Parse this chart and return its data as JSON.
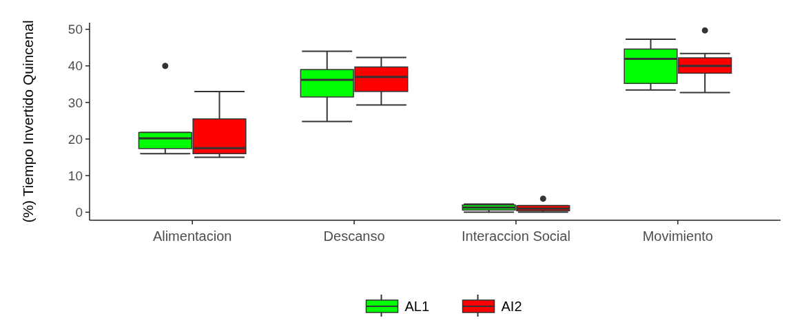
{
  "chart_data": {
    "type": "box",
    "ylabel": "(%) Tiempo Invertido Quincenal",
    "categories": [
      "Alimentacion",
      "Descanso",
      "Interaccion Social",
      "Movimiento"
    ],
    "ylim": [
      -2.2,
      51.8
    ],
    "yticks": [
      0,
      10,
      20,
      30,
      40,
      50
    ],
    "grid": false,
    "legend": "bottom",
    "series": [
      {
        "name": "AL1",
        "color": "#00ff00",
        "boxes": [
          {
            "low": 16,
            "q1": 17.4,
            "median": 20.2,
            "q3": 21.8,
            "high": 21.8,
            "outliers": [
              40
            ]
          },
          {
            "low": 24.8,
            "q1": 31.5,
            "median": 36.2,
            "q3": 39,
            "high": 44
          },
          {
            "low": 0,
            "q1": 0.6,
            "median": 1.3,
            "q3": 2,
            "high": 2.2
          },
          {
            "low": 33.4,
            "q1": 35.2,
            "median": 41.9,
            "q3": 44.6,
            "high": 47.3
          }
        ]
      },
      {
        "name": "AI2",
        "color": "#ff0000",
        "boxes": [
          {
            "low": 15,
            "q1": 16,
            "median": 17.5,
            "q3": 25.5,
            "high": 33
          },
          {
            "low": 29.3,
            "q1": 33,
            "median": 37,
            "q3": 39.7,
            "high": 42.3
          },
          {
            "low": 0,
            "q1": 0.4,
            "median": 1,
            "q3": 1.8,
            "high": 1.8,
            "outliers": [
              3.7
            ]
          },
          {
            "low": 32.7,
            "q1": 38,
            "median": 40,
            "q3": 42.2,
            "high": 43.4,
            "outliers": [
              49.7
            ]
          }
        ]
      }
    ]
  }
}
